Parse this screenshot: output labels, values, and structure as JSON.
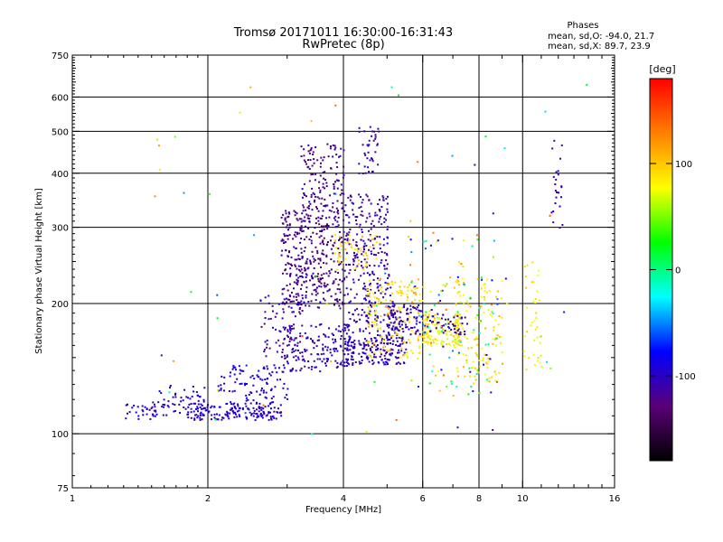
{
  "chart_data": {
    "type": "scatter",
    "title": "Tromsø 20171011 16:30:00-16:31:43",
    "subtitle": "RwPretec (8p)",
    "legend": {
      "title": "Phases",
      "line1": "mean, sd,O: -94.0, 21.7",
      "line2": "mean, sd,X:  89.7, 23.9"
    },
    "xlabel": "Frequency [MHz]",
    "ylabel": "Stationary phase Virtual Height [km]",
    "x_scale": "log",
    "y_scale": "log",
    "xlim": [
      1,
      16
    ],
    "ylim": [
      75,
      750
    ],
    "x_ticks": [
      {
        "v": 1,
        "label": "1"
      },
      {
        "v": 2,
        "label": "2"
      },
      {
        "v": 4,
        "label": "4"
      },
      {
        "v": 6,
        "label": "6"
      },
      {
        "v": 8,
        "label": "8"
      },
      {
        "v": 10,
        "label": "10"
      },
      {
        "v": 16,
        "label": "16"
      }
    ],
    "x_gridlines": [
      2,
      4,
      6,
      8,
      10
    ],
    "y_ticks": [
      {
        "v": 75,
        "label": "75"
      },
      {
        "v": 100,
        "label": "100"
      },
      {
        "v": 200,
        "label": "200"
      },
      {
        "v": 300,
        "label": "300"
      },
      {
        "v": 400,
        "label": "400"
      },
      {
        "v": 500,
        "label": "500"
      },
      {
        "v": 600,
        "label": "600"
      },
      {
        "v": 750,
        "label": "750"
      }
    ],
    "y_gridlines": [
      100,
      200,
      300,
      400,
      500,
      600
    ],
    "colorbar": {
      "label": "[deg]",
      "range": [
        -180,
        180
      ],
      "ticks": [
        {
          "v": 100,
          "label": "100"
        },
        {
          "v": 0,
          "label": "0"
        },
        {
          "v": -100,
          "label": "-100"
        }
      ],
      "colors": [
        "#000000",
        "#5a0078",
        "#0000ff",
        "#00ffff",
        "#00ff00",
        "#ffff00",
        "#ff8000",
        "#ff0000"
      ]
    },
    "clusters": [
      {
        "x": [
          1.3,
          1.6
        ],
        "y": [
          108,
          118
        ],
        "phase": [
          -110,
          -85
        ],
        "n": 30
      },
      {
        "x": [
          1.5,
          2.0
        ],
        "y": [
          110,
          130
        ],
        "phase": [
          -110,
          -80
        ],
        "n": 60
      },
      {
        "x": [
          1.8,
          2.9
        ],
        "y": [
          108,
          118
        ],
        "phase": [
          -110,
          -85
        ],
        "n": 160
      },
      {
        "x": [
          2.1,
          3.0
        ],
        "y": [
          118,
          145
        ],
        "phase": [
          -110,
          -80
        ],
        "n": 100
      },
      {
        "x": [
          2.6,
          3.3
        ],
        "y": [
          150,
          210
        ],
        "phase": [
          -130,
          -90
        ],
        "n": 80
      },
      {
        "x": [
          2.9,
          4.2
        ],
        "y": [
          140,
          180
        ],
        "phase": [
          -115,
          -90
        ],
        "n": 150
      },
      {
        "x": [
          2.9,
          4.0
        ],
        "y": [
          195,
          330
        ],
        "phase": [
          -145,
          -100
        ],
        "n": 380
      },
      {
        "x": [
          3.2,
          4.0
        ],
        "y": [
          330,
          470
        ],
        "phase": [
          -140,
          -95
        ],
        "n": 130
      },
      {
        "x": [
          4.0,
          5.5
        ],
        "y": [
          145,
          170
        ],
        "phase": [
          -115,
          -90
        ],
        "n": 180
      },
      {
        "x": [
          4.0,
          5.2
        ],
        "y": [
          170,
          240
        ],
        "phase": [
          -120,
          -90
        ],
        "n": 150
      },
      {
        "x": [
          4.0,
          5.0
        ],
        "y": [
          240,
          360
        ],
        "phase": [
          -125,
          -95
        ],
        "n": 160
      },
      {
        "x": [
          4.3,
          4.8
        ],
        "y": [
          400,
          520
        ],
        "phase": [
          -120,
          -95
        ],
        "n": 40
      },
      {
        "x": [
          4.5,
          6.0
        ],
        "y": [
          150,
          230
        ],
        "phase": [
          70,
          115
        ],
        "n": 170
      },
      {
        "x": [
          3.8,
          4.8
        ],
        "y": [
          240,
          290
        ],
        "phase": [
          70,
          110
        ],
        "n": 50
      },
      {
        "x": [
          5.0,
          6.0
        ],
        "y": [
          170,
          200
        ],
        "phase": [
          -115,
          -90
        ],
        "n": 80
      },
      {
        "x": [
          6.0,
          7.3
        ],
        "y": [
          160,
          190
        ],
        "phase": [
          60,
          100
        ],
        "n": 120
      },
      {
        "x": [
          6.0,
          7.5
        ],
        "y": [
          170,
          190
        ],
        "phase": [
          -115,
          -95
        ],
        "n": 50
      },
      {
        "x": [
          7.0,
          9.0
        ],
        "y": [
          130,
          230
        ],
        "phase": [
          70,
          110
        ],
        "n": 120
      },
      {
        "x": [
          5.5,
          9.0
        ],
        "y": [
          120,
          290
        ],
        "phase": [
          -110,
          150
        ],
        "n": 110
      },
      {
        "x": [
          10.0,
          11.0
        ],
        "y": [
          140,
          250
        ],
        "phase": [
          60,
          100
        ],
        "n": 40
      },
      {
        "x": [
          11.5,
          12.3
        ],
        "y": [
          300,
          480
        ],
        "phase": [
          -120,
          -95
        ],
        "n": 25
      },
      {
        "x": [
          1.5,
          14.0
        ],
        "y": [
          100,
          650
        ],
        "phase": [
          -130,
          160
        ],
        "n": 70
      }
    ]
  }
}
